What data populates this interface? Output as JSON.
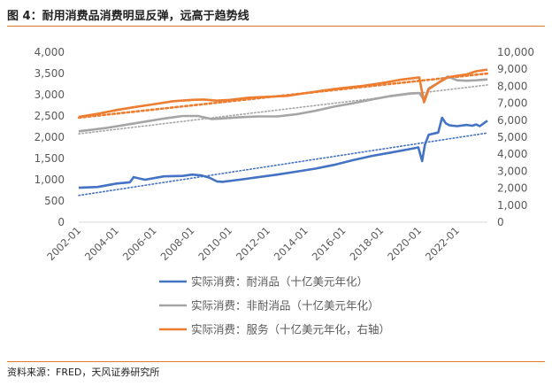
{
  "header": {
    "title": "图 4：耐用消费品消费明显反弹，远高于趋势线"
  },
  "footer": {
    "source": "资料来源：FRED，天风证券研究所"
  },
  "chart_data": {
    "type": "line",
    "x_tick_labels": [
      "2002-01",
      "2004-01",
      "2006-01",
      "2008-01",
      "2010-01",
      "2012-01",
      "2014-01",
      "2016-01",
      "2018-01",
      "2020-01",
      "2022-01"
    ],
    "x_range": [
      2002.0,
      2023.6
    ],
    "y_left": {
      "ylim": [
        0,
        4000
      ],
      "ticks": [
        "0",
        "500",
        "1,000",
        "1,500",
        "2,000",
        "2,500",
        "3,000",
        "3,500",
        "4,000"
      ]
    },
    "y_right": {
      "ylim": [
        0,
        10000
      ],
      "ticks": [
        "0",
        "1,000",
        "2,000",
        "3,000",
        "4,000",
        "5,000",
        "6,000",
        "7,000",
        "8,000",
        "9,000",
        "10,000"
      ]
    },
    "grid": false,
    "legend_position": "bottom",
    "series": [
      {
        "name": "实际消费：耐消品（十亿美元年化）",
        "axis": "left",
        "color": "#4472c4",
        "x": [
          2002.0,
          2003.0,
          2004.0,
          2004.7,
          2004.9,
          2005.5,
          2006.5,
          2007.5,
          2008.0,
          2008.5,
          2008.9,
          2009.3,
          2009.6,
          2010.5,
          2011.5,
          2012.5,
          2013.5,
          2014.5,
          2015.5,
          2016.5,
          2017.5,
          2018.5,
          2019.5,
          2019.95,
          2020.15,
          2020.3,
          2020.5,
          2020.7,
          2021.0,
          2021.2,
          2021.4,
          2021.6,
          2022.0,
          2022.5,
          2022.8,
          2023.0,
          2023.2,
          2023.6
        ],
        "values": [
          810,
          830,
          910,
          940,
          1060,
          1000,
          1080,
          1090,
          1120,
          1100,
          1050,
          960,
          950,
          1000,
          1060,
          1120,
          1190,
          1260,
          1350,
          1460,
          1560,
          1640,
          1720,
          1760,
          1440,
          1830,
          2060,
          2080,
          2110,
          2460,
          2330,
          2280,
          2260,
          2290,
          2270,
          2300,
          2260,
          2390
        ]
      },
      {
        "name": "实际消费：非耐消品（十亿美元年化）",
        "axis": "left",
        "color": "#a5a5a5",
        "x": [
          2002.0,
          2003.5,
          2005.0,
          2006.5,
          2007.5,
          2008.3,
          2009.0,
          2009.5,
          2010.5,
          2011.5,
          2012.5,
          2013.5,
          2014.5,
          2015.5,
          2016.5,
          2017.5,
          2018.5,
          2019.5,
          2020.0,
          2020.25,
          2020.5,
          2021.0,
          2021.5,
          2022.0,
          2022.5,
          2023.0,
          2023.6
        ],
        "values": [
          2140,
          2220,
          2330,
          2440,
          2500,
          2500,
          2430,
          2440,
          2470,
          2490,
          2490,
          2540,
          2620,
          2720,
          2800,
          2890,
          2970,
          3030,
          3040,
          2880,
          3150,
          3280,
          3430,
          3340,
          3330,
          3340,
          3360
        ]
      },
      {
        "name": "实际消费：服务（十亿美元年化，右轴）",
        "axis": "right",
        "color": "#ed7d31",
        "x": [
          2002.0,
          2003.0,
          2004.0,
          2005.0,
          2006.0,
          2007.0,
          2008.0,
          2008.6,
          2009.3,
          2010.0,
          2011.0,
          2012.0,
          2013.0,
          2014.0,
          2015.0,
          2016.0,
          2017.0,
          2018.0,
          2019.0,
          2020.0,
          2020.25,
          2020.5,
          2021.0,
          2021.5,
          2022.0,
          2022.5,
          2023.0,
          2023.6
        ],
        "values": [
          6200,
          6380,
          6600,
          6780,
          6950,
          7120,
          7200,
          7220,
          7150,
          7200,
          7330,
          7380,
          7430,
          7600,
          7760,
          7900,
          8020,
          8180,
          8380,
          8520,
          7050,
          7830,
          8200,
          8520,
          8620,
          8700,
          8880,
          8980
        ]
      }
    ],
    "trendlines": [
      {
        "series": "实际消费：耐消品（十亿美元年化）",
        "axis": "left",
        "color": "#4472c4",
        "x": [
          2002.0,
          2023.6
        ],
        "values": [
          630,
          2100
        ]
      },
      {
        "series": "实际消费：非耐消品（十亿美元年化）",
        "axis": "left",
        "color": "#a5a5a5",
        "x": [
          2002.0,
          2023.6
        ],
        "values": [
          2080,
          3230
        ]
      },
      {
        "series": "实际消费：服务（十亿美元年化，右轴）",
        "axis": "right",
        "color": "#ed7d31",
        "x": [
          2002.0,
          2023.6
        ],
        "values": [
          6150,
          8750
        ]
      }
    ]
  }
}
